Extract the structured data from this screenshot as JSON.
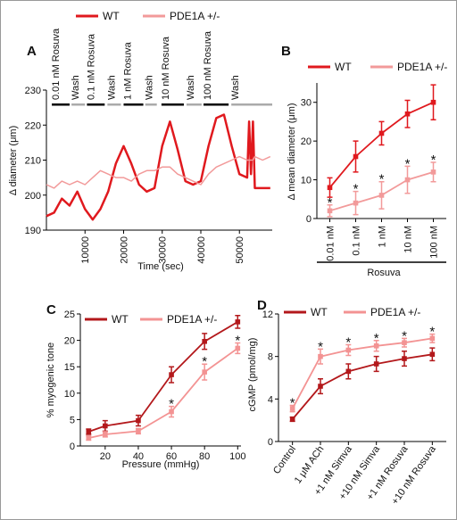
{
  "chart_data": [
    {
      "type": "line",
      "panel_label": "A",
      "x_label": "Time (sec)",
      "y_label": "Δ diameter (μm)",
      "x": [
        0,
        2000,
        4000,
        6000,
        8000,
        10000,
        12000,
        14000,
        16000,
        18000,
        20000,
        22000,
        24000,
        26000,
        28000,
        30000,
        32000,
        34000,
        36000,
        38000,
        40000,
        42000,
        44000,
        46000,
        48000,
        50000,
        52000,
        52500,
        53000,
        53500,
        54000,
        56000,
        58000
      ],
      "series": [
        {
          "name": "WT",
          "color": "#e0191e",
          "values": [
            194,
            195,
            199,
            197,
            201,
            196,
            193,
            196,
            201,
            209,
            214,
            209,
            203,
            201,
            202,
            214,
            221,
            213,
            204,
            203,
            204,
            214,
            222,
            223,
            214,
            206,
            205,
            221,
            206,
            221,
            202,
            202,
            202
          ]
        },
        {
          "name": "PDE1A +/-",
          "color": "#f29a9a",
          "values": [
            203,
            202,
            204,
            203,
            204,
            203,
            205,
            207,
            206,
            205,
            205,
            204,
            206,
            207,
            207,
            208,
            208,
            206,
            205,
            204,
            203,
            206,
            208,
            209,
            210,
            211,
            210,
            210,
            210,
            210,
            211,
            210,
            211
          ]
        }
      ],
      "treatments": [
        {
          "label": "0.01 nM Rosuva",
          "start": 1400,
          "end": 6000,
          "color": "#000000"
        },
        {
          "label": "Wash",
          "start": 6500,
          "end": 10000,
          "color": "#aaaaaa"
        },
        {
          "label": "0.1 nM Rosuva",
          "start": 10500,
          "end": 15100,
          "color": "#000000"
        },
        {
          "label": "Wash",
          "start": 15800,
          "end": 19300,
          "color": "#aaaaaa"
        },
        {
          "label": "1 nM Rosuva",
          "start": 20000,
          "end": 25100,
          "color": "#000000"
        },
        {
          "label": "Wash",
          "start": 25600,
          "end": 28600,
          "color": "#aaaaaa"
        },
        {
          "label": "10 nM Rosuva",
          "start": 29800,
          "end": 35600,
          "color": "#000000"
        },
        {
          "label": "Wash",
          "start": 36300,
          "end": 40200,
          "color": "#aaaaaa"
        },
        {
          "label": "100 nM Rosuva",
          "start": 40700,
          "end": 47200,
          "color": "#000000"
        },
        {
          "label": "Wash",
          "start": 47900,
          "end": 58500,
          "color": "#aaaaaa"
        }
      ],
      "xlim": [
        0,
        58500
      ],
      "xticks": [
        10000,
        20000,
        30000,
        40000,
        50000
      ],
      "ylim": [
        190,
        230
      ],
      "yticks": [
        190,
        200,
        210,
        220,
        230
      ]
    },
    {
      "type": "line",
      "panel_label": "B",
      "x_label": "Rosuva",
      "y_label": "Δ mean diameter (μm)",
      "categories": [
        "0.01 nM",
        "0.1 nM",
        "1 nM",
        "10 nM",
        "100 nM"
      ],
      "series": [
        {
          "name": "WT",
          "color": "#e0191e",
          "values": [
            8,
            16,
            22,
            27,
            30
          ],
          "errors": [
            2.5,
            4,
            3,
            3.5,
            4.5
          ]
        },
        {
          "name": "PDE1A +/-",
          "color": "#f29a9a",
          "values": [
            2,
            4,
            6,
            10,
            12
          ],
          "errors": [
            1.5,
            3,
            3.5,
            3.5,
            2.5
          ]
        }
      ],
      "annotations": [
        {
          "text": "*",
          "at": "0.01 nM"
        },
        {
          "text": "*",
          "at": "0.1 nM"
        },
        {
          "text": "*",
          "at": "1 nM"
        },
        {
          "text": "*",
          "at": "10 nM"
        },
        {
          "text": "*",
          "at": "100 nM"
        }
      ],
      "ylim": [
        0,
        35
      ],
      "yticks": [
        0,
        10,
        20,
        30
      ]
    },
    {
      "type": "line",
      "panel_label": "C",
      "x_label": "Pressure (mmHg)",
      "y_label": "% myogenic tone",
      "x": [
        10,
        20,
        40,
        60,
        80,
        100
      ],
      "series": [
        {
          "name": "WT",
          "color": "#b3181b",
          "values": [
            2.7,
            3.8,
            4.8,
            13.5,
            19.8,
            23.5
          ],
          "errors": [
            0.5,
            1,
            1,
            1.5,
            1.5,
            1.2
          ]
        },
        {
          "name": "PDE1A +/-",
          "color": "#f39393",
          "values": [
            1.5,
            2.2,
            2.8,
            6.5,
            14,
            18.5
          ],
          "errors": [
            0.4,
            0.5,
            0.5,
            1,
            1.5,
            1
          ]
        }
      ],
      "annotations": [
        {
          "text": "*",
          "at": 60
        },
        {
          "text": "*",
          "at": 80
        },
        {
          "text": "*",
          "at": 100
        }
      ],
      "xlim": [
        5,
        102
      ],
      "xticks": [
        20,
        40,
        60,
        80,
        100
      ],
      "ylim": [
        0,
        25
      ],
      "yticks": [
        0,
        5,
        10,
        15,
        20,
        25
      ]
    },
    {
      "type": "line",
      "panel_label": "D",
      "y_label": "cGMP (pmol/mg)",
      "categories": [
        "Control",
        "1 μM ACh",
        "+1 nM Simva",
        "+10 nM Simva",
        "+1 nM Rosuva",
        "+10 nM Rosuva"
      ],
      "series": [
        {
          "name": "WT",
          "color": "#b3181b",
          "values": [
            2.1,
            5.2,
            6.6,
            7.3,
            7.8,
            8.2
          ],
          "errors": [
            0.2,
            0.7,
            0.7,
            0.7,
            0.7,
            0.6
          ]
        },
        {
          "name": "PDE1A +/-",
          "color": "#f39393",
          "values": [
            3.1,
            8,
            8.6,
            9,
            9.3,
            9.7
          ],
          "errors": [
            0.3,
            0.7,
            0.5,
            0.5,
            0.4,
            0.4
          ]
        }
      ],
      "annotations": [
        {
          "text": "*",
          "at": "Control"
        },
        {
          "text": "*",
          "at": "1 μM ACh"
        },
        {
          "text": "*",
          "at": "+1 nM Simva"
        },
        {
          "text": "*",
          "at": "+10 nM Simva"
        },
        {
          "text": "*",
          "at": "+1 nM Rosuva"
        },
        {
          "text": "*",
          "at": "+10 nM Rosuva"
        }
      ],
      "ylim": [
        0,
        12
      ],
      "yticks": [
        0,
        4,
        8,
        12
      ]
    }
  ]
}
